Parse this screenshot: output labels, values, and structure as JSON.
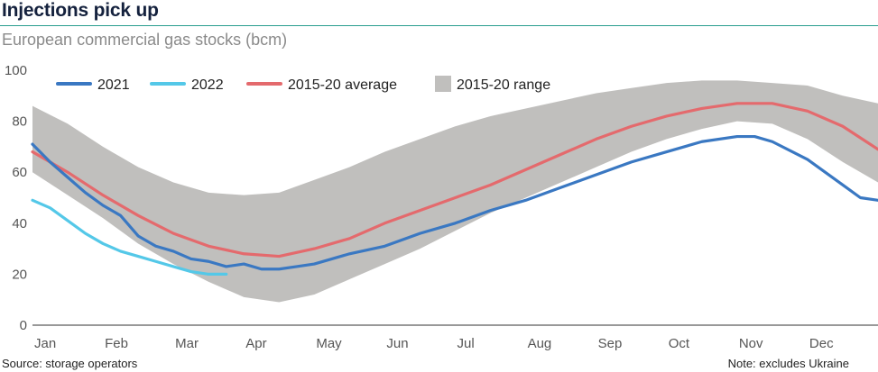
{
  "header": {
    "title": "Injections pick up",
    "subtitle": "European commercial gas stocks (bcm)"
  },
  "footer": {
    "source": "Source: storage operators",
    "note": "Note: excludes Ukraine"
  },
  "colors": {
    "2021": "#3a78c2",
    "2022": "#54c8e8",
    "average": "#e46a6d",
    "range": "#c0bfbd"
  },
  "chart_data": {
    "type": "line",
    "xlabel": "",
    "ylabel": "",
    "ylim": [
      0,
      100
    ],
    "xlim": [
      0,
      12
    ],
    "yticks": [
      0,
      20,
      40,
      60,
      80,
      100
    ],
    "grid": false,
    "legend_position": "top",
    "months": [
      "Jan",
      "Feb",
      "Mar",
      "Apr",
      "May",
      "Jun",
      "Jul",
      "Aug",
      "Sep",
      "Oct",
      "Nov",
      "Dec"
    ],
    "series": [
      {
        "name": "2021",
        "kind": "line",
        "points": [
          [
            0,
            71
          ],
          [
            0.25,
            64
          ],
          [
            0.5,
            58
          ],
          [
            0.75,
            52
          ],
          [
            1,
            47
          ],
          [
            1.25,
            43
          ],
          [
            1.5,
            35
          ],
          [
            1.75,
            31
          ],
          [
            2,
            29
          ],
          [
            2.25,
            26
          ],
          [
            2.5,
            25
          ],
          [
            2.75,
            23
          ],
          [
            3,
            24
          ],
          [
            3.25,
            22
          ],
          [
            3.5,
            22
          ],
          [
            3.75,
            23
          ],
          [
            4,
            24
          ],
          [
            4.5,
            28
          ],
          [
            5,
            31
          ],
          [
            5.5,
            36
          ],
          [
            6,
            40
          ],
          [
            6.5,
            45
          ],
          [
            7,
            49
          ],
          [
            7.5,
            54
          ],
          [
            8,
            59
          ],
          [
            8.5,
            64
          ],
          [
            9,
            68
          ],
          [
            9.5,
            72
          ],
          [
            10,
            74
          ],
          [
            10.25,
            74
          ],
          [
            10.5,
            72
          ],
          [
            11,
            65
          ],
          [
            11.25,
            60
          ],
          [
            11.5,
            55
          ],
          [
            11.75,
            50
          ],
          [
            12,
            49
          ]
        ]
      },
      {
        "name": "2022",
        "kind": "line",
        "points": [
          [
            0,
            49
          ],
          [
            0.25,
            46
          ],
          [
            0.5,
            41
          ],
          [
            0.75,
            36
          ],
          [
            1,
            32
          ],
          [
            1.25,
            29
          ],
          [
            1.5,
            27
          ],
          [
            1.75,
            25
          ],
          [
            2,
            23
          ],
          [
            2.25,
            21
          ],
          [
            2.5,
            20
          ],
          [
            2.75,
            20
          ]
        ]
      },
      {
        "name": "2015-20 average",
        "kind": "line",
        "points": [
          [
            0,
            68
          ],
          [
            0.5,
            60
          ],
          [
            1,
            51
          ],
          [
            1.5,
            43
          ],
          [
            2,
            36
          ],
          [
            2.5,
            31
          ],
          [
            3,
            28
          ],
          [
            3.5,
            27
          ],
          [
            4,
            30
          ],
          [
            4.5,
            34
          ],
          [
            5,
            40
          ],
          [
            5.5,
            45
          ],
          [
            6,
            50
          ],
          [
            6.5,
            55
          ],
          [
            7,
            61
          ],
          [
            7.5,
            67
          ],
          [
            8,
            73
          ],
          [
            8.5,
            78
          ],
          [
            9,
            82
          ],
          [
            9.5,
            85
          ],
          [
            10,
            87
          ],
          [
            10.5,
            87
          ],
          [
            11,
            84
          ],
          [
            11.5,
            78
          ],
          [
            12,
            69
          ]
        ]
      },
      {
        "name": "2015-20 range",
        "kind": "band",
        "upper": [
          [
            0,
            86
          ],
          [
            0.5,
            79
          ],
          [
            1,
            70
          ],
          [
            1.5,
            62
          ],
          [
            2,
            56
          ],
          [
            2.5,
            52
          ],
          [
            3,
            51
          ],
          [
            3.5,
            52
          ],
          [
            4,
            57
          ],
          [
            4.5,
            62
          ],
          [
            5,
            68
          ],
          [
            5.5,
            73
          ],
          [
            6,
            78
          ],
          [
            6.5,
            82
          ],
          [
            7,
            85
          ],
          [
            7.5,
            88
          ],
          [
            8,
            91
          ],
          [
            8.5,
            93
          ],
          [
            9,
            95
          ],
          [
            9.5,
            96
          ],
          [
            10,
            96
          ],
          [
            10.5,
            95
          ],
          [
            11,
            94
          ],
          [
            11.5,
            90
          ],
          [
            12,
            87
          ]
        ],
        "lower": [
          [
            0,
            60
          ],
          [
            0.5,
            51
          ],
          [
            1,
            42
          ],
          [
            1.5,
            32
          ],
          [
            2,
            24
          ],
          [
            2.5,
            17
          ],
          [
            3,
            11
          ],
          [
            3.5,
            9
          ],
          [
            4,
            12
          ],
          [
            4.5,
            18
          ],
          [
            5,
            24
          ],
          [
            5.5,
            30
          ],
          [
            6,
            37
          ],
          [
            6.5,
            44
          ],
          [
            7,
            50
          ],
          [
            7.5,
            56
          ],
          [
            8,
            62
          ],
          [
            8.5,
            68
          ],
          [
            9,
            73
          ],
          [
            9.5,
            77
          ],
          [
            10,
            80
          ],
          [
            10.5,
            79
          ],
          [
            11,
            73
          ],
          [
            11.5,
            64
          ],
          [
            12,
            56
          ]
        ]
      }
    ]
  }
}
